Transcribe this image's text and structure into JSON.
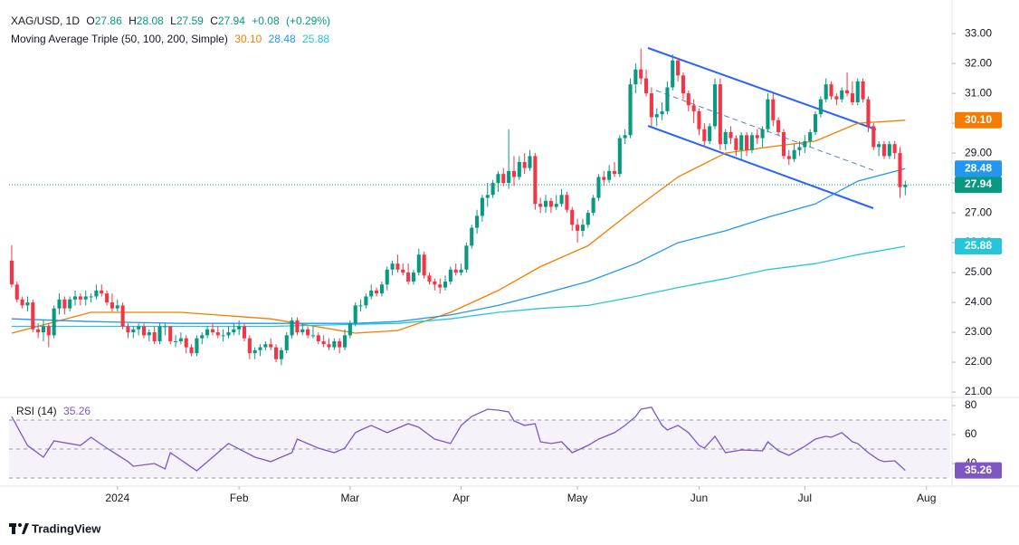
{
  "chart_data": {
    "type": "candlestick",
    "symbol": "XAG/USD, 1D",
    "ohlc_letters": [
      "O",
      "H",
      "L",
      "C"
    ],
    "change": "+0.08",
    "change_pct": "(+0.29%)",
    "up_color": "#089981",
    "down_color": "#f23645",
    "grid": false,
    "last_price_line": true,
    "ohlc": [
      [
        25.4,
        25.92,
        24.5,
        24.6
      ],
      [
        24.6,
        24.7,
        24.0,
        24.1
      ],
      [
        24.1,
        24.2,
        23.8,
        23.9
      ],
      [
        23.9,
        24.2,
        23.7,
        24.0
      ],
      [
        24.0,
        24.1,
        23.0,
        23.1
      ],
      [
        23.1,
        23.3,
        22.8,
        23.0
      ],
      [
        23.0,
        23.4,
        22.7,
        23.2
      ],
      [
        23.2,
        23.3,
        22.5,
        22.9
      ],
      [
        22.9,
        23.9,
        22.8,
        23.8
      ],
      [
        23.8,
        24.3,
        23.6,
        24.1
      ],
      [
        24.1,
        24.2,
        23.6,
        23.8
      ],
      [
        23.8,
        24.2,
        23.7,
        24.1
      ],
      [
        24.1,
        24.4,
        23.9,
        24.2
      ],
      [
        24.2,
        24.3,
        23.9,
        24.1
      ],
      [
        24.1,
        24.4,
        23.9,
        24.2
      ],
      [
        24.2,
        24.3,
        24.0,
        24.2
      ],
      [
        24.2,
        24.6,
        24.1,
        24.4
      ],
      [
        24.4,
        24.6,
        24.2,
        24.3
      ],
      [
        24.3,
        24.4,
        23.9,
        24.0
      ],
      [
        24.0,
        24.3,
        23.7,
        23.8
      ],
      [
        23.8,
        24.1,
        23.7,
        23.9
      ],
      [
        23.9,
        24.0,
        23.1,
        23.2
      ],
      [
        23.2,
        23.3,
        22.8,
        23.0
      ],
      [
        23.0,
        23.2,
        22.8,
        23.1
      ],
      [
        23.1,
        23.3,
        22.9,
        23.2
      ],
      [
        23.2,
        23.3,
        22.8,
        22.9
      ],
      [
        22.9,
        23.1,
        22.7,
        23.0
      ],
      [
        23.0,
        23.2,
        22.6,
        22.7
      ],
      [
        22.7,
        23.3,
        22.6,
        23.2
      ],
      [
        23.2,
        23.3,
        22.9,
        23.2
      ],
      [
        23.2,
        23.2,
        22.6,
        22.7
      ],
      [
        22.7,
        22.9,
        22.5,
        22.7
      ],
      [
        22.7,
        23.0,
        22.6,
        22.8
      ],
      [
        22.8,
        22.9,
        22.3,
        22.5
      ],
      [
        22.5,
        22.6,
        22.2,
        22.3
      ],
      [
        22.3,
        22.9,
        22.2,
        22.8
      ],
      [
        22.8,
        23.0,
        22.6,
        22.9
      ],
      [
        22.9,
        23.2,
        22.8,
        23.1
      ],
      [
        23.1,
        23.3,
        22.9,
        23.0
      ],
      [
        23.0,
        23.2,
        22.8,
        22.9
      ],
      [
        22.9,
        23.1,
        22.7,
        22.9
      ],
      [
        22.9,
        23.2,
        22.8,
        23.0
      ],
      [
        23.0,
        23.3,
        22.9,
        23.1
      ],
      [
        23.1,
        23.4,
        22.9,
        23.2
      ],
      [
        23.2,
        23.3,
        22.7,
        22.8
      ],
      [
        22.8,
        22.9,
        22.1,
        22.3
      ],
      [
        22.3,
        22.5,
        22.1,
        22.4
      ],
      [
        22.4,
        22.6,
        22.2,
        22.5
      ],
      [
        22.5,
        22.7,
        22.4,
        22.6
      ],
      [
        22.6,
        22.8,
        22.4,
        22.5
      ],
      [
        22.5,
        22.6,
        22.0,
        22.1
      ],
      [
        22.1,
        22.5,
        21.9,
        22.4
      ],
      [
        22.4,
        23.0,
        22.3,
        22.9
      ],
      [
        22.9,
        23.5,
        22.8,
        23.4
      ],
      [
        23.4,
        23.5,
        22.9,
        23.0
      ],
      [
        23.0,
        23.3,
        22.9,
        23.1
      ],
      [
        23.1,
        23.2,
        22.8,
        22.9
      ],
      [
        22.9,
        23.2,
        22.8,
        22.9
      ],
      [
        22.9,
        23.0,
        22.6,
        22.7
      ],
      [
        22.7,
        22.9,
        22.5,
        22.6
      ],
      [
        22.6,
        22.8,
        22.4,
        22.5
      ],
      [
        22.5,
        22.8,
        22.4,
        22.7
      ],
      [
        22.7,
        22.8,
        22.3,
        22.5
      ],
      [
        22.5,
        23.1,
        22.4,
        22.9
      ],
      [
        22.9,
        23.4,
        22.8,
        23.3
      ],
      [
        23.3,
        24.0,
        23.2,
        23.9
      ],
      [
        23.9,
        24.1,
        23.7,
        23.9
      ],
      [
        23.9,
        24.3,
        23.8,
        24.2
      ],
      [
        24.2,
        24.6,
        24.1,
        24.4
      ],
      [
        24.4,
        24.5,
        24.2,
        24.3
      ],
      [
        24.3,
        24.7,
        24.2,
        24.6
      ],
      [
        24.6,
        25.2,
        24.4,
        25.1
      ],
      [
        25.1,
        25.4,
        24.9,
        25.3
      ],
      [
        25.3,
        25.6,
        25.0,
        25.1
      ],
      [
        25.1,
        25.3,
        24.9,
        25.0
      ],
      [
        25.0,
        25.3,
        24.6,
        24.7
      ],
      [
        24.7,
        25.1,
        24.6,
        25.0
      ],
      [
        25.0,
        25.8,
        24.9,
        25.6
      ],
      [
        25.6,
        25.7,
        24.8,
        24.9
      ],
      [
        24.9,
        25.0,
        24.6,
        24.7
      ],
      [
        24.7,
        24.8,
        24.4,
        24.6
      ],
      [
        24.6,
        24.8,
        24.3,
        24.5
      ],
      [
        24.5,
        24.9,
        24.4,
        24.7
      ],
      [
        24.7,
        25.2,
        24.6,
        25.1
      ],
      [
        25.1,
        25.3,
        24.9,
        25.0
      ],
      [
        25.0,
        25.3,
        24.9,
        25.1
      ],
      [
        25.1,
        26.0,
        25.0,
        25.9
      ],
      [
        25.9,
        26.6,
        25.8,
        26.5
      ],
      [
        26.5,
        27.1,
        26.3,
        26.9
      ],
      [
        26.9,
        27.6,
        26.7,
        27.5
      ],
      [
        27.5,
        28.0,
        27.2,
        27.6
      ],
      [
        27.6,
        28.1,
        27.5,
        28.0
      ],
      [
        28.0,
        28.4,
        27.7,
        28.3
      ],
      [
        28.3,
        28.5,
        27.9,
        28.0
      ],
      [
        28.0,
        29.8,
        27.8,
        28.4
      ],
      [
        28.4,
        28.9,
        27.9,
        28.2
      ],
      [
        28.2,
        28.9,
        28.1,
        28.7
      ],
      [
        28.7,
        29.0,
        28.3,
        28.5
      ],
      [
        28.5,
        29.1,
        28.4,
        28.9
      ],
      [
        28.9,
        29.0,
        27.1,
        27.3
      ],
      [
        27.3,
        27.5,
        27.0,
        27.2
      ],
      [
        27.2,
        27.6,
        27.0,
        27.4
      ],
      [
        27.4,
        27.5,
        27.0,
        27.2
      ],
      [
        27.2,
        27.6,
        27.1,
        27.3
      ],
      [
        27.3,
        27.8,
        27.2,
        27.6
      ],
      [
        27.6,
        27.7,
        27.0,
        27.1
      ],
      [
        27.1,
        27.2,
        26.4,
        26.6
      ],
      [
        26.6,
        26.8,
        26.0,
        26.4
      ],
      [
        26.4,
        26.8,
        26.2,
        26.6
      ],
      [
        26.6,
        27.1,
        26.5,
        27.0
      ],
      [
        27.0,
        27.6,
        26.9,
        27.5
      ],
      [
        27.5,
        28.3,
        27.4,
        28.2
      ],
      [
        28.2,
        28.4,
        27.9,
        28.1
      ],
      [
        28.1,
        28.6,
        28.0,
        28.4
      ],
      [
        28.4,
        28.7,
        28.2,
        28.3
      ],
      [
        28.3,
        29.6,
        28.2,
        29.5
      ],
      [
        29.5,
        29.8,
        29.3,
        29.6
      ],
      [
        29.6,
        31.5,
        29.5,
        31.3
      ],
      [
        31.3,
        32.0,
        31.0,
        31.8
      ],
      [
        31.8,
        32.5,
        31.3,
        31.5
      ],
      [
        31.5,
        31.8,
        30.9,
        31.0
      ],
      [
        31.0,
        31.2,
        29.9,
        30.2
      ],
      [
        30.2,
        30.5,
        29.9,
        30.3
      ],
      [
        30.3,
        30.7,
        30.1,
        30.4
      ],
      [
        30.4,
        31.4,
        30.3,
        31.2
      ],
      [
        31.2,
        32.3,
        31.1,
        32.1
      ],
      [
        32.1,
        32.2,
        31.4,
        31.6
      ],
      [
        31.6,
        31.7,
        30.8,
        31.0
      ],
      [
        31.0,
        31.1,
        30.4,
        30.6
      ],
      [
        30.6,
        30.8,
        30.0,
        30.4
      ],
      [
        30.4,
        30.5,
        29.6,
        29.8
      ],
      [
        29.8,
        30.0,
        29.2,
        29.4
      ],
      [
        29.4,
        30.0,
        29.3,
        29.9
      ],
      [
        29.9,
        31.5,
        29.8,
        31.3
      ],
      [
        31.3,
        31.5,
        29.1,
        29.3
      ],
      [
        29.3,
        29.8,
        29.1,
        29.7
      ],
      [
        29.7,
        29.9,
        29.3,
        29.5
      ],
      [
        29.5,
        29.6,
        28.9,
        29.1
      ],
      [
        29.1,
        29.7,
        28.8,
        29.6
      ],
      [
        29.6,
        29.7,
        28.9,
        29.1
      ],
      [
        29.1,
        29.7,
        29.0,
        29.6
      ],
      [
        29.6,
        29.8,
        29.3,
        29.5
      ],
      [
        29.5,
        29.9,
        29.2,
        29.8
      ],
      [
        29.8,
        31.0,
        29.7,
        30.8
      ],
      [
        30.8,
        31.0,
        29.9,
        30.1
      ],
      [
        30.1,
        30.2,
        29.6,
        29.7
      ],
      [
        29.7,
        29.8,
        28.8,
        28.9
      ],
      [
        28.9,
        29.1,
        28.6,
        28.8
      ],
      [
        28.8,
        29.3,
        28.7,
        29.1
      ],
      [
        29.1,
        29.4,
        28.9,
        29.2
      ],
      [
        29.2,
        29.6,
        29.0,
        29.4
      ],
      [
        29.4,
        29.8,
        29.2,
        29.7
      ],
      [
        29.7,
        30.4,
        29.6,
        30.3
      ],
      [
        30.3,
        30.9,
        30.2,
        30.8
      ],
      [
        30.8,
        31.5,
        30.7,
        31.3
      ],
      [
        31.3,
        31.4,
        30.8,
        30.9
      ],
      [
        30.9,
        31.0,
        30.6,
        30.8
      ],
      [
        30.8,
        31.2,
        30.7,
        31.1
      ],
      [
        31.1,
        31.7,
        30.9,
        31.0
      ],
      [
        31.0,
        31.4,
        30.6,
        30.7
      ],
      [
        30.7,
        31.5,
        30.6,
        31.4
      ],
      [
        31.4,
        31.5,
        30.7,
        30.8
      ],
      [
        30.8,
        30.9,
        29.7,
        29.9
      ],
      [
        29.9,
        30.0,
        29.1,
        29.2
      ],
      [
        29.2,
        29.4,
        28.9,
        29.3
      ],
      [
        29.3,
        29.4,
        28.8,
        28.9
      ],
      [
        28.9,
        29.4,
        28.8,
        29.3
      ],
      [
        29.3,
        29.4,
        28.8,
        29.0
      ],
      [
        29.0,
        29.2,
        27.5,
        27.86
      ],
      [
        27.86,
        28.08,
        27.59,
        27.94
      ]
    ],
    "xlim": [
      -0.5,
      177.5
    ],
    "xticks": [
      {
        "value": 20,
        "label": "2024"
      },
      {
        "value": 43,
        "label": "Feb"
      },
      {
        "value": 64,
        "label": "Mar"
      },
      {
        "value": 85,
        "label": "Apr"
      },
      {
        "value": 107,
        "label": "May"
      },
      {
        "value": 130,
        "label": "Jun"
      },
      {
        "value": 150,
        "label": "Jul"
      },
      {
        "value": 173,
        "label": "Aug"
      }
    ],
    "ylim": [
      20.85,
      33.67
    ],
    "yticks": [
      {
        "value": 21,
        "label": "21.00"
      },
      {
        "value": 22,
        "label": "22.00"
      },
      {
        "value": 23,
        "label": "23.00"
      },
      {
        "value": 24,
        "label": "24.00"
      },
      {
        "value": 25,
        "label": "25.00"
      },
      {
        "value": 26,
        "label": "26.00"
      },
      {
        "value": 27,
        "label": "27.00"
      },
      {
        "value": 28,
        "label": "28.00"
      },
      {
        "value": 29,
        "label": "29.00"
      },
      {
        "value": 30,
        "label": "30.00"
      },
      {
        "value": 31,
        "label": "31.00"
      },
      {
        "value": 32,
        "label": "32.00"
      },
      {
        "value": 33,
        "label": "33.00"
      }
    ],
    "overlays_title": "Moving Average Triple (50, 100, 200, Simple)",
    "moving_averages": [
      {
        "color": "#f57c00",
        "value_label": "30.10",
        "x": [
          0,
          15,
          32,
          49,
          65,
          73,
          83,
          92,
          100,
          109,
          118,
          126,
          135,
          143,
          152,
          160,
          169
        ],
        "values": [
          22.97,
          23.67,
          23.67,
          23.45,
          22.97,
          23.06,
          23.67,
          24.4,
          25.2,
          25.9,
          27.15,
          28.2,
          29.0,
          29.2,
          29.4,
          30.0,
          30.1
        ]
      },
      {
        "color": "#2196f3",
        "value_label": "28.48",
        "x": [
          0,
          15,
          32,
          49,
          65,
          73,
          83,
          92,
          100,
          109,
          118,
          126,
          135,
          143,
          152,
          160,
          169
        ],
        "values": [
          23.45,
          23.36,
          23.3,
          23.3,
          23.3,
          23.36,
          23.58,
          23.9,
          24.27,
          24.7,
          25.3,
          26.0,
          26.4,
          26.85,
          27.3,
          28.06,
          28.48
        ]
      },
      {
        "color": "#26c6da",
        "value_label": "25.88",
        "x": [
          0,
          15,
          32,
          49,
          65,
          73,
          83,
          92,
          100,
          109,
          118,
          126,
          135,
          143,
          152,
          160,
          169
        ],
        "values": [
          23.2,
          23.2,
          23.2,
          23.2,
          23.27,
          23.3,
          23.45,
          23.67,
          23.8,
          23.9,
          24.2,
          24.5,
          24.8,
          25.1,
          25.3,
          25.6,
          25.88
        ]
      }
    ],
    "rsi": {
      "type": "line",
      "title": "RSI (14)",
      "color": "#7e57c2",
      "ylim": [
        25,
        85
      ],
      "yticks": [
        80,
        60,
        40
      ],
      "bands": [
        30,
        50,
        70
      ],
      "x": [
        0,
        3,
        6,
        8,
        13,
        15,
        18,
        22,
        23,
        27,
        29,
        30,
        35,
        39,
        41,
        46,
        49,
        53,
        54,
        58,
        61,
        63,
        65,
        66,
        68,
        71,
        75,
        77,
        80,
        83,
        85,
        87,
        90,
        92,
        94,
        95,
        97,
        99,
        100,
        102,
        104,
        106,
        109,
        111,
        114,
        116,
        118,
        119,
        121,
        123,
        124,
        126,
        128,
        130,
        131,
        133,
        135,
        138,
        142,
        143,
        145,
        147,
        150,
        152,
        154,
        155,
        157,
        159,
        160,
        162,
        164,
        165,
        167,
        169
      ],
      "values": [
        72.5,
        52.5,
        44.4,
        55.6,
        52.5,
        58.1,
        50.6,
        41.3,
        38.1,
        40.0,
        36.3,
        47.5,
        35.0,
        47.5,
        53.8,
        44.4,
        41.3,
        47.5,
        56.9,
        50.6,
        47.5,
        50.6,
        61.3,
        63.1,
        66.3,
        61.3,
        67.5,
        65.0,
        56.9,
        53.8,
        66.3,
        72.5,
        77.5,
        76.9,
        75.6,
        69.4,
        66.3,
        67.5,
        55.0,
        53.8,
        55.0,
        47.5,
        52.5,
        56.9,
        61.3,
        66.3,
        72.5,
        77.5,
        78.8,
        66.3,
        63.1,
        66.3,
        61.3,
        52.5,
        50.6,
        58.8,
        47.5,
        49.4,
        48.8,
        55.0,
        48.8,
        45.6,
        51.9,
        56.9,
        58.8,
        58.1,
        61.3,
        55.0,
        53.8,
        47.5,
        42.5,
        41.3,
        41.9,
        35.26
      ]
    },
    "branding": "TradingView"
  }
}
